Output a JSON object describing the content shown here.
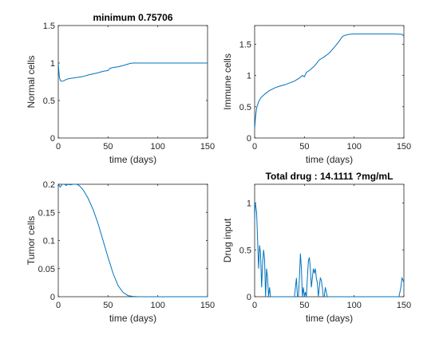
{
  "chart_data": [
    {
      "type": "line",
      "title": "minimum 0.75706",
      "xlabel": "time (days)",
      "ylabel": "Normal cells",
      "xlim": [
        0,
        150
      ],
      "ylim": [
        0,
        1.5
      ],
      "xticks": [
        0,
        50,
        100,
        150
      ],
      "yticks": [
        0,
        0.5,
        1,
        1.5
      ],
      "xtick_labels": [
        "0",
        "50",
        "100",
        "150"
      ],
      "ytick_labels": [
        "0",
        "0.5",
        "1",
        "1.5"
      ],
      "color": "#0072BD",
      "series": [
        {
          "x": [
            0,
            1,
            2,
            3,
            5,
            8,
            10,
            15,
            20,
            25,
            30,
            35,
            40,
            45,
            50,
            52,
            55,
            60,
            65,
            70,
            72,
            75,
            80,
            100,
            120,
            150
          ],
          "y": [
            1.0,
            0.82,
            0.77,
            0.757,
            0.76,
            0.78,
            0.79,
            0.8,
            0.81,
            0.82,
            0.84,
            0.855,
            0.87,
            0.89,
            0.9,
            0.93,
            0.94,
            0.95,
            0.965,
            0.985,
            0.995,
            1.0,
            1.0,
            1.0,
            1.0,
            1.0
          ]
        }
      ]
    },
    {
      "type": "line",
      "title": "",
      "xlabel": "time (days)",
      "ylabel": "Immune cells",
      "xlim": [
        0,
        150
      ],
      "ylim": [
        0,
        1.8
      ],
      "xticks": [
        0,
        50,
        100,
        150
      ],
      "yticks": [
        0,
        0.5,
        1,
        1.5
      ],
      "xtick_labels": [
        "0",
        "50",
        "100",
        "150"
      ],
      "ytick_labels": [
        "0",
        "0.5",
        "1",
        "1.5"
      ],
      "color": "#0072BD",
      "series": [
        {
          "x": [
            0,
            1,
            2,
            4,
            6,
            10,
            15,
            20,
            25,
            30,
            35,
            40,
            45,
            48,
            50,
            52,
            55,
            60,
            65,
            70,
            75,
            80,
            85,
            88,
            90,
            95,
            100,
            110,
            120,
            130,
            140,
            148,
            150
          ],
          "y": [
            0.15,
            0.35,
            0.48,
            0.58,
            0.64,
            0.7,
            0.76,
            0.8,
            0.83,
            0.85,
            0.88,
            0.91,
            0.96,
            1.0,
            0.98,
            1.05,
            1.08,
            1.15,
            1.25,
            1.3,
            1.36,
            1.45,
            1.55,
            1.62,
            1.64,
            1.66,
            1.665,
            1.665,
            1.665,
            1.665,
            1.665,
            1.66,
            1.63
          ]
        }
      ]
    },
    {
      "type": "line",
      "title": "",
      "xlabel": "time (days)",
      "ylabel": "Tumor cells",
      "xlim": [
        0,
        150
      ],
      "ylim": [
        0,
        0.2
      ],
      "xticks": [
        0,
        50,
        100,
        150
      ],
      "yticks": [
        0,
        0.05,
        0.1,
        0.15,
        0.2
      ],
      "xtick_labels": [
        "0",
        "50",
        "100",
        "150"
      ],
      "ytick_labels": [
        "0",
        "0.05",
        "0.1",
        "0.15",
        "0.2"
      ],
      "color": "#0072BD",
      "series": [
        {
          "x": [
            0,
            2,
            4,
            6,
            8,
            10,
            12,
            15,
            18,
            20,
            22,
            25,
            30,
            35,
            40,
            45,
            50,
            55,
            60,
            65,
            70,
            75,
            80,
            90,
            100,
            120,
            150
          ],
          "y": [
            0.2,
            0.195,
            0.2,
            0.2,
            0.198,
            0.2,
            0.199,
            0.2,
            0.2,
            0.199,
            0.196,
            0.19,
            0.175,
            0.155,
            0.13,
            0.1,
            0.07,
            0.042,
            0.02,
            0.008,
            0.002,
            0.0005,
            0.0,
            0.0,
            0.0,
            0.0,
            0.0
          ]
        }
      ]
    },
    {
      "type": "line",
      "title": "Total drug : 14.1111 ?mg/mL",
      "xlabel": "time (days)",
      "ylabel": "Drug input",
      "xlim": [
        0,
        150
      ],
      "ylim": [
        0,
        1.2
      ],
      "xticks": [
        0,
        50,
        100,
        150
      ],
      "yticks": [
        0,
        0.5,
        1
      ],
      "xtick_labels": [
        "0",
        "50",
        "100",
        "150"
      ],
      "ytick_labels": [
        "0",
        "0.5",
        "1"
      ],
      "color": "#0072BD",
      "series": [
        {
          "x": [
            0,
            0.5,
            1,
            2,
            3,
            4,
            5,
            6,
            7,
            8,
            9,
            10,
            11,
            12,
            13,
            14,
            15,
            16,
            20,
            40,
            41,
            42,
            43,
            44,
            45,
            46,
            47,
            48,
            49,
            50,
            51,
            52,
            53,
            54,
            55,
            56,
            57,
            58,
            59,
            60,
            61,
            62,
            63,
            64,
            65,
            66,
            67,
            68,
            69,
            70,
            71,
            72,
            73,
            75,
            100,
            145,
            146,
            147,
            148,
            149,
            150
          ],
          "y": [
            0.8,
            1.0,
            0.98,
            0.9,
            0.6,
            0.3,
            0.55,
            0.45,
            0.1,
            0.35,
            0.5,
            0.4,
            0.0,
            0.3,
            0.2,
            0.0,
            0.1,
            0.0,
            0.0,
            0.0,
            0.1,
            0.2,
            0.0,
            0.0,
            0.2,
            0.46,
            0.3,
            0.0,
            0.1,
            0.0,
            0.05,
            0.0,
            0.2,
            0.38,
            0.42,
            0.3,
            0.1,
            0.2,
            0.3,
            0.25,
            0.3,
            0.2,
            0.15,
            0.0,
            0.1,
            0.2,
            0.18,
            0.1,
            0.0,
            0.0,
            0.1,
            0.05,
            0.0,
            0.0,
            0.0,
            0.0,
            0.05,
            0.1,
            0.2,
            0.18,
            0.15
          ]
        }
      ]
    }
  ]
}
